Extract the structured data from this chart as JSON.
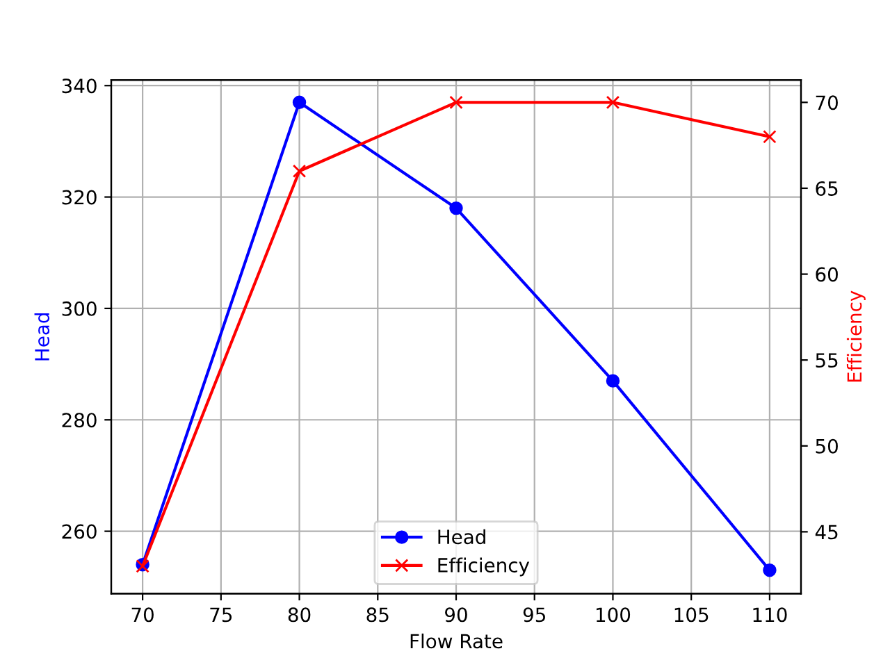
{
  "chart_data": {
    "type": "line",
    "xlabel": "Flow Rate",
    "ylabel": "Head",
    "y2label": "Efficiency",
    "x": [
      70,
      80,
      90,
      100,
      110
    ],
    "series": [
      {
        "name": "Head",
        "color": "#0000ff",
        "values": [
          254,
          337,
          318,
          287,
          253
        ],
        "marker": "circle",
        "axis": "y"
      },
      {
        "name": "Efficiency",
        "color": "#ff0000",
        "values": [
          43,
          66,
          70,
          70,
          68
        ],
        "marker": "cross",
        "axis": "y2"
      }
    ],
    "xlim": [
      68,
      112
    ],
    "xticks": [
      70,
      75,
      80,
      85,
      90,
      95,
      100,
      105,
      110
    ],
    "ylim": [
      248.8,
      341
    ],
    "yticks": [
      260,
      280,
      300,
      320,
      340
    ],
    "y2lim": [
      41.4,
      71.3
    ],
    "y2ticks": [
      45,
      50,
      55,
      60,
      65,
      70
    ],
    "grid": true,
    "legend": "lower center",
    "line_style": "solid"
  }
}
